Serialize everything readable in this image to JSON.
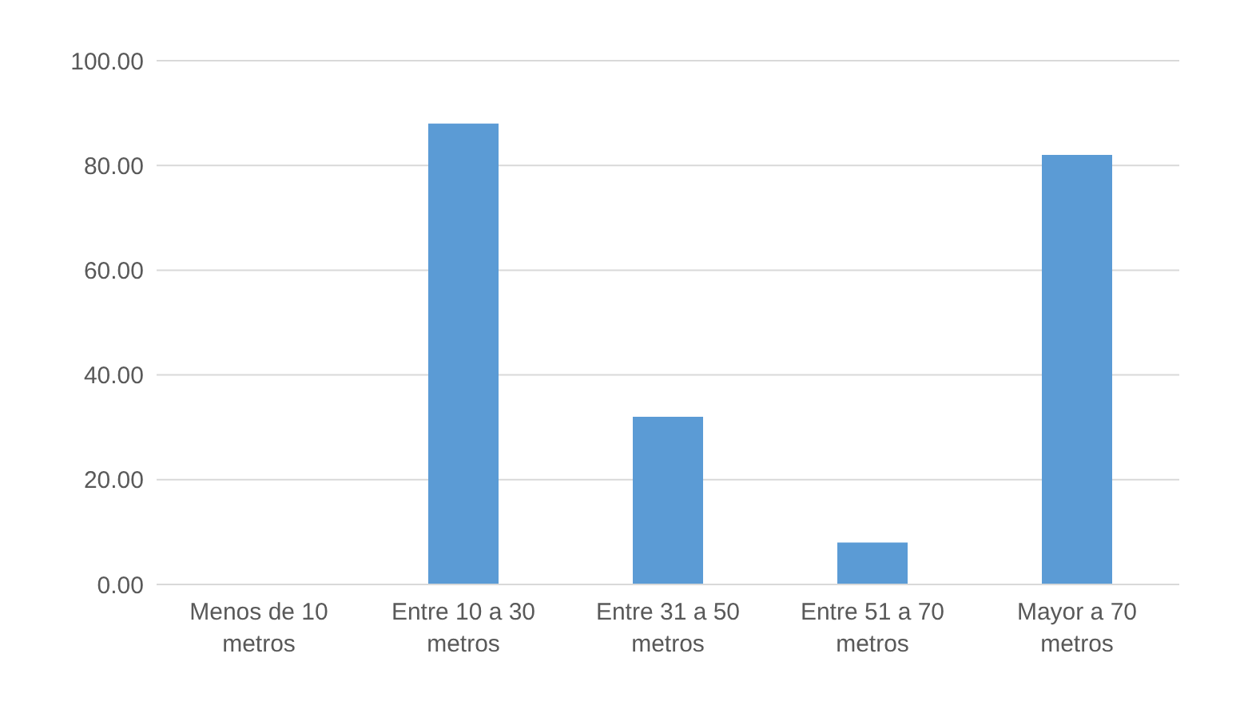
{
  "chart_data": {
    "type": "bar",
    "categories": [
      "Menos de 10 metros",
      "Entre 10 a 30 metros",
      "Entre 31 a 50 metros",
      "Entre 51 a 70 metros",
      "Mayor a 70 metros"
    ],
    "values": [
      0,
      88,
      32,
      8,
      82
    ],
    "color": "#5b9bd5",
    "ylim": [
      0,
      100
    ],
    "yticks": [
      {
        "value": 0,
        "label": "0.00"
      },
      {
        "value": 20,
        "label": "20.00"
      },
      {
        "value": 40,
        "label": "40.00"
      },
      {
        "value": 60,
        "label": "60.00"
      },
      {
        "value": 80,
        "label": "80.00"
      },
      {
        "value": 100,
        "label": "100.00"
      }
    ],
    "grid": "y"
  }
}
